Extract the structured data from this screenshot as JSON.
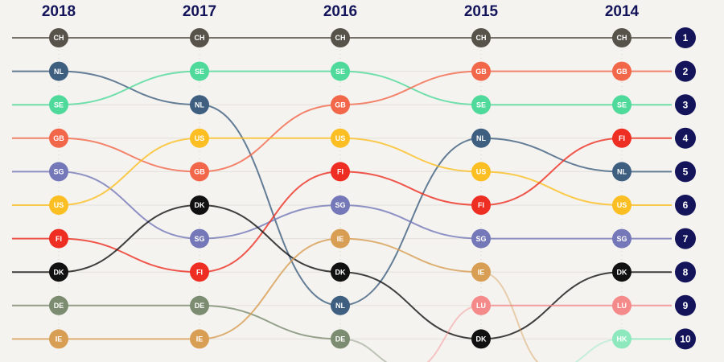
{
  "chart_data": {
    "type": "bump",
    "title": "",
    "years": [
      "2018",
      "2017",
      "2016",
      "2015",
      "2014"
    ],
    "ranks": [
      "1",
      "2",
      "3",
      "4",
      "5",
      "6",
      "7",
      "8",
      "9",
      "10"
    ],
    "series": [
      {
        "code": "CH",
        "color": "#57534a",
        "ranks": [
          1,
          1,
          1,
          1,
          1
        ]
      },
      {
        "code": "NL",
        "color": "#3e5f7f",
        "ranks": [
          2,
          3,
          9,
          4,
          5
        ]
      },
      {
        "code": "SE",
        "color": "#4fd99a",
        "ranks": [
          3,
          2,
          2,
          3,
          3
        ]
      },
      {
        "code": "GB",
        "color": "#f2674a",
        "ranks": [
          4,
          5,
          3,
          2,
          2
        ]
      },
      {
        "code": "SG",
        "color": "#7478b8",
        "ranks": [
          5,
          7,
          6,
          7,
          7
        ]
      },
      {
        "code": "US",
        "color": "#fbbf24",
        "ranks": [
          6,
          4,
          4,
          5,
          6
        ]
      },
      {
        "code": "FI",
        "color": "#ee2e22",
        "ranks": [
          7,
          8,
          5,
          6,
          4
        ]
      },
      {
        "code": "DK",
        "color": "#111111",
        "ranks": [
          8,
          6,
          8,
          10,
          8
        ]
      },
      {
        "code": "DE",
        "color": "#7c8c70",
        "ranks": [
          9,
          9,
          10,
          null,
          null
        ]
      },
      {
        "code": "IE",
        "color": "#d89e54",
        "ranks": [
          10,
          10,
          7,
          8,
          null
        ]
      },
      {
        "code": "LU",
        "color": "#f48a8a",
        "ranks": [
          null,
          null,
          null,
          9,
          9
        ]
      },
      {
        "code": "HK",
        "color": "#8ee8be",
        "ranks": [
          null,
          null,
          null,
          null,
          10
        ]
      }
    ],
    "rank_badge_color": "#14145a"
  }
}
